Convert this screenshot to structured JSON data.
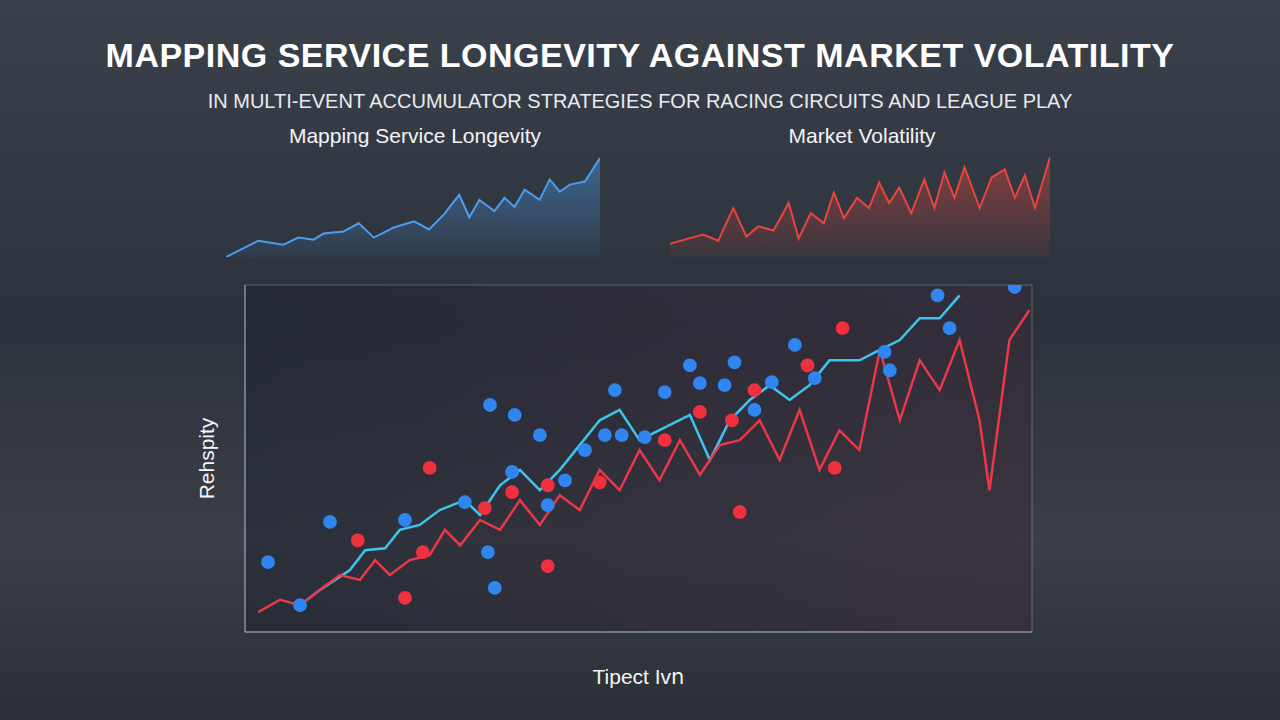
{
  "title": "MAPPING SERVICE LONGEVITY AGAINST MARKET VOLATILITY",
  "subtitle": "IN MULTI-EVENT ACCUMULATOR STRATEGIES FOR RACING CIRCUITS AND LEAGUE PLAY",
  "chart_data": [
    {
      "type": "area",
      "title": "Mapping Service Longevity",
      "color": "#4a9df0",
      "tick_labels": false,
      "grid": false,
      "xlim": [
        0,
        372
      ],
      "ylim": [
        0,
        100
      ],
      "x": [
        0,
        32,
        57,
        72,
        87,
        97,
        117,
        132,
        147,
        167,
        187,
        202,
        217,
        232,
        242,
        252,
        267,
        277,
        287,
        297,
        312,
        322,
        332,
        342,
        357,
        372
      ],
      "values": [
        0,
        16,
        12,
        19,
        17,
        23,
        25,
        33,
        19,
        29,
        35,
        27,
        42,
        61,
        39,
        56,
        45,
        58,
        49,
        66,
        56,
        76,
        64,
        71,
        74,
        97
      ]
    },
    {
      "type": "area",
      "title": "Market Volatility",
      "color": "#e8453c",
      "tick_labels": false,
      "grid": false,
      "xlim": [
        0,
        378
      ],
      "ylim": [
        0,
        100
      ],
      "x": [
        0,
        18,
        33,
        48,
        63,
        76,
        88,
        103,
        118,
        128,
        140,
        153,
        163,
        173,
        186,
        198,
        208,
        218,
        228,
        240,
        253,
        263,
        273,
        283,
        293,
        308,
        320,
        333,
        343,
        353,
        363,
        378
      ],
      "values": [
        13,
        18,
        22,
        16,
        48,
        20,
        30,
        26,
        53,
        18,
        43,
        33,
        63,
        38,
        58,
        48,
        73,
        53,
        68,
        43,
        76,
        48,
        83,
        58,
        88,
        48,
        78,
        86,
        58,
        80,
        48,
        98
      ]
    },
    {
      "type": "line",
      "xlabel": "Tipect Ivո",
      "ylabel": "Rehspity",
      "tick_labels": false,
      "grid": true,
      "xlim": [
        0,
        15
      ],
      "ylim": [
        0,
        7
      ],
      "xticks": [
        0,
        1,
        2,
        3,
        4,
        5,
        6,
        7,
        8,
        9,
        10,
        11,
        12,
        13,
        14,
        15
      ],
      "yticks": [
        0,
        1,
        2,
        3,
        4,
        5,
        6,
        7
      ],
      "series": [
        {
          "type": "line",
          "color": "#3fc4ee",
          "marker": "none",
          "line_style": "solid",
          "x": [
            1.05,
            1.43,
            2.0,
            2.29,
            2.67,
            2.95,
            3.33,
            3.71,
            4.19,
            4.48,
            4.86,
            5.24,
            5.62,
            6.0,
            6.38,
            6.76,
            7.14,
            7.52,
            7.9,
            8.48,
            8.86,
            9.24,
            9.62,
            10.0,
            10.38,
            10.76,
            11.14,
            11.71,
            12.1,
            12.48,
            12.86,
            13.24,
            13.62
          ],
          "values": [
            0.54,
            0.85,
            1.25,
            1.65,
            1.69,
            2.06,
            2.16,
            2.46,
            2.66,
            2.36,
            2.96,
            3.27,
            2.86,
            3.27,
            3.77,
            4.27,
            4.48,
            3.87,
            4.07,
            4.38,
            3.47,
            4.27,
            4.68,
            4.98,
            4.68,
            4.98,
            5.48,
            5.48,
            5.69,
            5.89,
            6.33,
            6.33,
            6.79
          ]
        },
        {
          "type": "line",
          "color": "#e8384a",
          "marker": "none",
          "line_style": "solid",
          "x": [
            0.25,
            0.67,
            1.05,
            1.43,
            1.81,
            2.19,
            2.48,
            2.76,
            3.14,
            3.52,
            3.81,
            4.1,
            4.48,
            4.86,
            5.24,
            5.62,
            6.0,
            6.38,
            6.76,
            7.14,
            7.52,
            7.9,
            8.29,
            8.67,
            9.05,
            9.43,
            9.81,
            10.19,
            10.57,
            10.95,
            11.33,
            11.71,
            12.1,
            12.48,
            12.86,
            13.24,
            13.62,
            14.0,
            14.19,
            14.57,
            14.95
          ],
          "values": [
            0.4,
            0.65,
            0.54,
            0.85,
            1.15,
            1.05,
            1.45,
            1.15,
            1.45,
            1.55,
            2.06,
            1.75,
            2.26,
            2.06,
            2.66,
            2.16,
            2.76,
            2.46,
            3.27,
            2.86,
            3.67,
            3.06,
            3.87,
            3.17,
            3.77,
            3.87,
            4.27,
            3.47,
            4.48,
            3.27,
            4.07,
            3.67,
            5.69,
            4.27,
            5.48,
            4.88,
            5.89,
            4.27,
            2.86,
            5.89,
            6.49
          ]
        },
        {
          "type": "scatter",
          "color": "#2f86f0",
          "marker": "circle",
          "x": [
            0.44,
            1.05,
            1.62,
            3.05,
            4.19,
            4.67,
            4.63,
            4.76,
            5.09,
            5.14,
            5.62,
            5.77,
            6.1,
            6.48,
            6.86,
            7.05,
            7.18,
            7.62,
            8.0,
            8.48,
            8.67,
            9.14,
            9.33,
            9.71,
            10.04,
            10.48,
            10.86,
            12.19,
            12.29,
            13.43,
            13.2,
            14.67
          ],
          "values": [
            1.41,
            0.54,
            2.22,
            2.26,
            2.62,
            4.58,
            1.61,
            0.89,
            3.23,
            4.38,
            3.97,
            2.56,
            3.06,
            3.67,
            3.97,
            4.88,
            3.97,
            3.93,
            4.84,
            5.38,
            5.02,
            4.98,
            5.44,
            4.48,
            5.04,
            5.79,
            5.12,
            5.65,
            5.28,
            6.13,
            6.79,
            6.96
          ]
        },
        {
          "type": "scatter",
          "color": "#f0303f",
          "marker": "circle",
          "x": [
            2.15,
            3.39,
            3.52,
            4.57,
            5.09,
            5.77,
            6.76,
            8.0,
            8.67,
            9.28,
            9.71,
            10.72,
            11.39,
            11.24,
            5.77,
            3.05,
            9.43
          ],
          "values": [
            1.85,
            1.61,
            3.31,
            2.5,
            2.82,
            2.96,
            3.02,
            3.87,
            4.44,
            4.27,
            4.88,
            5.38,
            6.13,
            3.31,
            1.33,
            0.69,
            2.42
          ]
        }
      ]
    }
  ]
}
